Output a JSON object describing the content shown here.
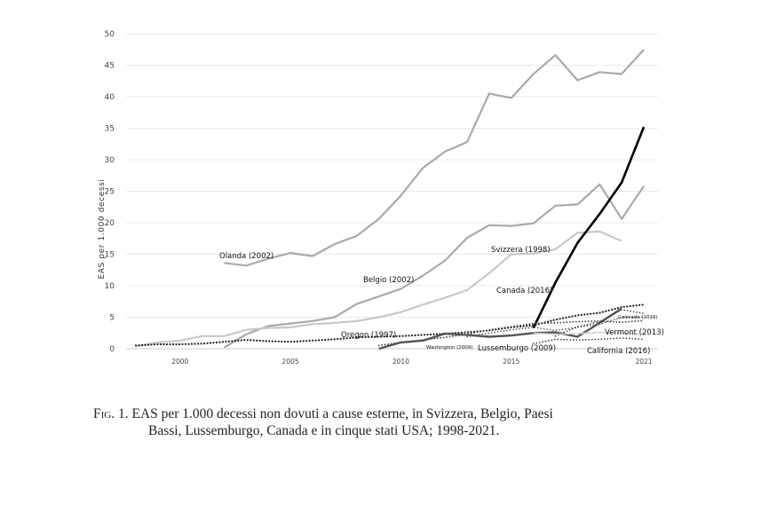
{
  "chart_data": {
    "type": "line",
    "ylabel": "EAS per 1.000 decessi",
    "xlabel": "",
    "ylim": [
      0,
      50
    ],
    "xlim": [
      1998,
      2021
    ],
    "yticks": [
      0,
      5,
      10,
      15,
      20,
      25,
      30,
      35,
      40,
      45,
      50
    ],
    "xticks": [
      2000,
      2005,
      2010,
      2015,
      2021
    ],
    "grid": "horizontal",
    "series": [
      {
        "name": "Olanda (2002)",
        "style": "solid",
        "color": "#a9a9a9",
        "width": 2.2,
        "x": [
          2002,
          2003,
          2004,
          2005,
          2006,
          2007,
          2008,
          2009,
          2010,
          2011,
          2012,
          2013,
          2014,
          2015,
          2016,
          2017,
          2018,
          2019,
          2020,
          2021
        ],
        "y": [
          13.6,
          13.2,
          14.3,
          15.2,
          14.7,
          16.6,
          17.9,
          20.6,
          24.3,
          28.7,
          31.3,
          32.8,
          40.5,
          39.8,
          43.6,
          46.6,
          42.6,
          43.9,
          43.6,
          47.5
        ]
      },
      {
        "name": "Belgio (2002)",
        "style": "solid",
        "color": "#a9a9a9",
        "width": 2.2,
        "x": [
          2002,
          2003,
          2004,
          2005,
          2006,
          2007,
          2008,
          2009,
          2010,
          2011,
          2012,
          2013,
          2014,
          2015,
          2016,
          2017,
          2018,
          2019,
          2020,
          2021
        ],
        "y": [
          0.2,
          2.3,
          3.6,
          4.0,
          4.4,
          5.0,
          7.1,
          8.3,
          9.5,
          11.6,
          14.0,
          17.6,
          19.6,
          19.5,
          19.9,
          22.7,
          22.9,
          26.1,
          20.6,
          25.8
        ]
      },
      {
        "name": "Svizzera (1998)",
        "style": "solid",
        "color": "#c8c8c8",
        "width": 2.2,
        "x": [
          1998,
          1999,
          2000,
          2001,
          2002,
          2003,
          2004,
          2005,
          2006,
          2007,
          2008,
          2009,
          2010,
          2011,
          2012,
          2013,
          2014,
          2015,
          2016,
          2017,
          2018,
          2019,
          2020
        ],
        "y": [
          0.4,
          1.0,
          1.3,
          2.0,
          2.0,
          3.0,
          3.3,
          3.4,
          3.9,
          4.1,
          4.4,
          5.0,
          5.8,
          7.0,
          8.1,
          9.3,
          12.0,
          15.0,
          15.1,
          15.8,
          18.4,
          18.6,
          17.1
        ]
      },
      {
        "name": "Canada (2016)",
        "style": "solid",
        "color": "#000000",
        "width": 2.6,
        "x": [
          2016,
          2017,
          2018,
          2019,
          2020,
          2021
        ],
        "y": [
          3.3,
          10.5,
          16.8,
          21.4,
          26.4,
          35.2
        ]
      },
      {
        "name": "Oregon (1997)",
        "style": "dotted",
        "color": "#222222",
        "width": 2.2,
        "x": [
          1998,
          1999,
          2000,
          2001,
          2002,
          2003,
          2004,
          2005,
          2006,
          2007,
          2008,
          2009,
          2010,
          2011,
          2012,
          2013,
          2014,
          2015,
          2016,
          2017,
          2018,
          2019,
          2020,
          2021
        ],
        "y": [
          0.5,
          0.7,
          0.7,
          0.8,
          1.1,
          1.4,
          1.2,
          1.1,
          1.3,
          1.5,
          1.8,
          1.9,
          2.0,
          2.2,
          2.4,
          2.6,
          2.9,
          3.4,
          3.7,
          4.6,
          5.3,
          5.7,
          6.6,
          7.0
        ]
      },
      {
        "name": "Washington (2009)",
        "style": "dotted",
        "color": "#444444",
        "width": 1.8,
        "x": [
          2009,
          2010,
          2011,
          2012,
          2013,
          2014,
          2015,
          2016,
          2017,
          2018,
          2019,
          2020,
          2021
        ],
        "y": [
          0.5,
          1.0,
          1.4,
          1.8,
          2.3,
          3.0,
          3.5,
          4.0,
          4.1,
          4.3,
          4.4,
          4.2,
          4.5
        ]
      },
      {
        "name": "Lussemburgo (2009)",
        "style": "solid",
        "color": "#555555",
        "width": 2.4,
        "x": [
          2009,
          2010,
          2011,
          2012,
          2013,
          2014,
          2015,
          2016,
          2017,
          2018,
          2019,
          2020
        ],
        "y": [
          0.0,
          1.0,
          1.3,
          2.4,
          2.2,
          1.9,
          2.1,
          2.5,
          2.6,
          1.9,
          4.1,
          6.4
        ]
      },
      {
        "name": "Vermont (2013)",
        "style": "dotted",
        "color": "#555555",
        "width": 1.6,
        "x": [
          2013,
          2014,
          2015,
          2016,
          2017,
          2018,
          2019,
          2020,
          2021
        ],
        "y": [
          1.9,
          2.5,
          3.0,
          3.4,
          2.9,
          3.4,
          3.9,
          5.0,
          5.0
        ]
      },
      {
        "name": "Colorado (2016)",
        "style": "dotted",
        "color": "#444444",
        "width": 1.6,
        "x": [
          2017,
          2018,
          2019,
          2020,
          2021
        ],
        "y": [
          2.0,
          3.5,
          4.3,
          6.2,
          5.6
        ]
      },
      {
        "name": "California (2016)",
        "style": "dotted",
        "color": "#333333",
        "width": 1.6,
        "x": [
          2016,
          2017,
          2018,
          2019,
          2020,
          2021
        ],
        "y": [
          0.8,
          1.5,
          1.4,
          1.5,
          1.7,
          1.5
        ]
      },
      {
        "name": "",
        "style": "solid",
        "color": "#d0d0d0",
        "width": 1.4,
        "x": [
          2016,
          2017,
          2018,
          2019,
          2020,
          2021
        ],
        "y": [
          2.5,
          2.3,
          2.4,
          2.6,
          2.5,
          2.2
        ]
      }
    ]
  },
  "labels": [
    {
      "text": "Olanda (2002)",
      "size": "normal"
    },
    {
      "text": "Belgio (2002)",
      "size": "normal"
    },
    {
      "text": "Svizzera (1998)",
      "size": "normal"
    },
    {
      "text": "Canada (2016)",
      "size": "normal"
    },
    {
      "text": "Oregon (1997)",
      "size": "normal"
    },
    {
      "text": "Washington (2009)",
      "size": "small"
    },
    {
      "text": "Lussemburgo (2009)",
      "size": "normal"
    },
    {
      "text": "Vermont (2013)",
      "size": "normal"
    },
    {
      "text": "Colorado (2016)",
      "size": "small"
    },
    {
      "text": "California (2016)",
      "size": "normal"
    }
  ],
  "caption": {
    "prefix": "Fig. 1.",
    "line1": "EAS per 1.000 decessi non dovuti a cause esterne, in Svizzera, Belgio, Paesi",
    "line2": "Bassi, Lussemburgo, Canada e in cinque stati USA; 1998-2021."
  }
}
